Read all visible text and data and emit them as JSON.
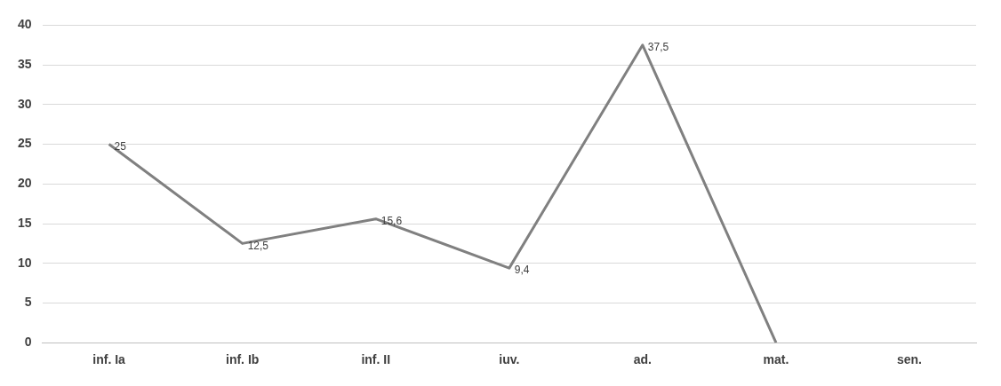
{
  "chart_data": {
    "type": "line",
    "categories": [
      "inf. Ia",
      "inf. Ib",
      "inf. II",
      "iuv.",
      "ad.",
      "mat.",
      "sen."
    ],
    "series": [
      {
        "color": "#808080",
        "values": [
          25,
          12.5,
          15.6,
          9.4,
          37.5,
          0,
          null
        ],
        "value_labels": [
          "25",
          "12,5",
          "15,6",
          "9,4",
          "37,5",
          null,
          null
        ]
      }
    ],
    "ylim": [
      0,
      40
    ],
    "yticks": [
      0,
      5,
      10,
      15,
      20,
      25,
      30,
      35,
      40
    ],
    "grid": "y",
    "legend": false,
    "marker": "none",
    "line_style": "solid"
  }
}
